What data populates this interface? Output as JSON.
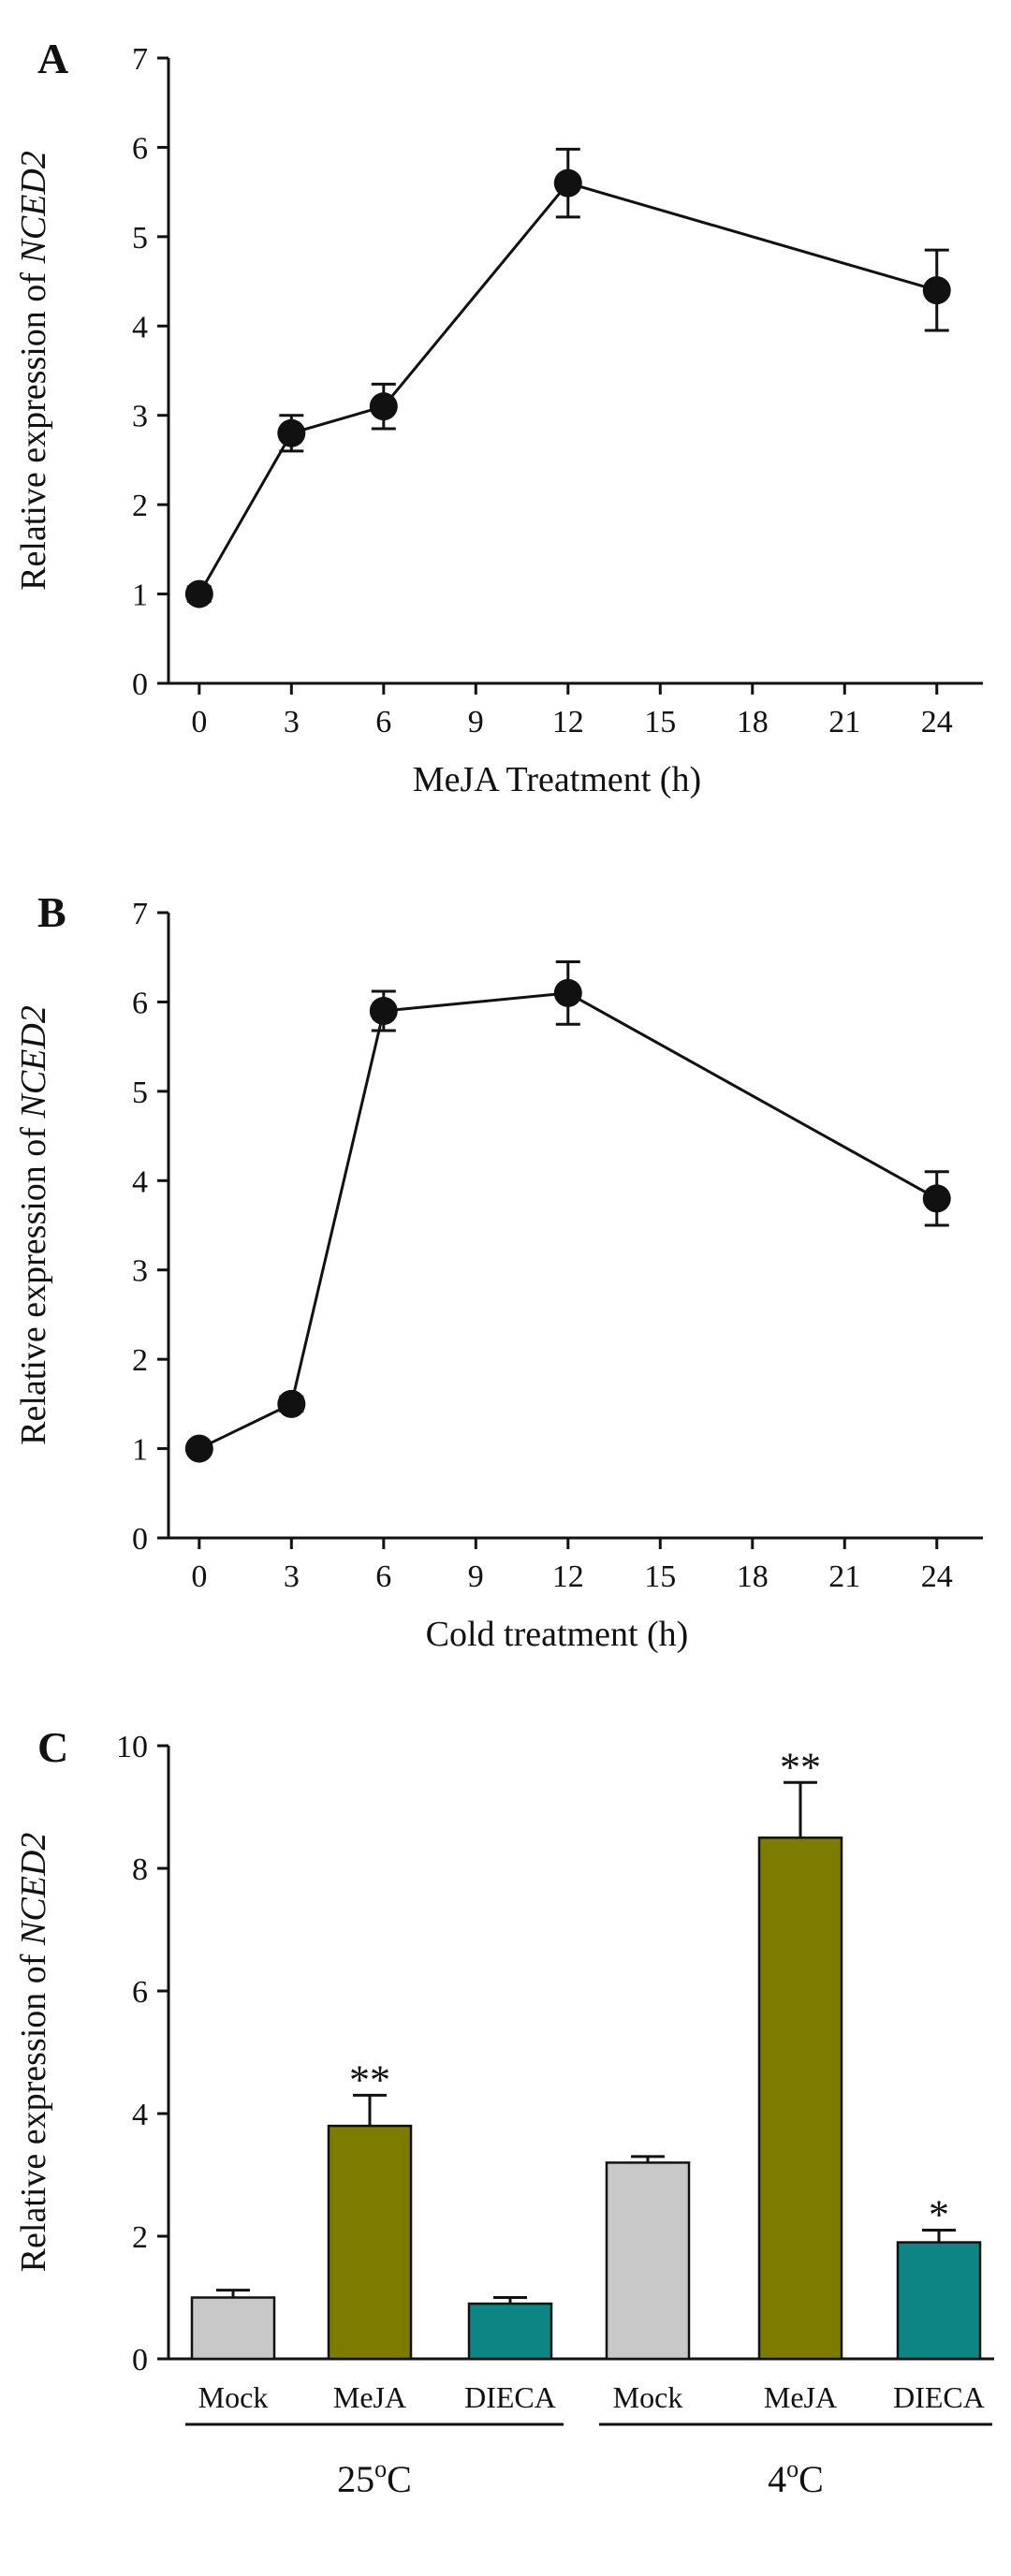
{
  "chart_data": [
    {
      "panel": "A",
      "type": "line",
      "title": "",
      "xlabel": "MeJA Treatment (h)",
      "ylabel_prefix": "Relative expression of ",
      "ylabel_gene": "NCED2",
      "x": [
        0,
        3,
        6,
        12,
        24
      ],
      "y": [
        1.0,
        2.8,
        3.1,
        5.6,
        4.4
      ],
      "error": [
        0.08,
        0.2,
        0.25,
        0.38,
        0.45
      ],
      "xlim": [
        -1,
        25.5
      ],
      "ylim": [
        0,
        7
      ],
      "xticks": [
        0,
        3,
        6,
        9,
        12,
        15,
        18,
        21,
        24
      ],
      "yticks": [
        0,
        1,
        2,
        3,
        4,
        5,
        6,
        7
      ]
    },
    {
      "panel": "B",
      "type": "line",
      "title": "",
      "xlabel": "Cold treatment (h)",
      "ylabel_prefix": "Relative expression of ",
      "ylabel_gene": "NCED2",
      "x": [
        0,
        3,
        6,
        12,
        24
      ],
      "y": [
        1.0,
        1.5,
        5.9,
        6.1,
        3.8
      ],
      "error": [
        0.05,
        0.08,
        0.22,
        0.35,
        0.3
      ],
      "xlim": [
        -1,
        25.5
      ],
      "ylim": [
        0,
        7
      ],
      "xticks": [
        0,
        3,
        6,
        9,
        12,
        15,
        18,
        21,
        24
      ],
      "yticks": [
        0,
        1,
        2,
        3,
        4,
        5,
        6,
        7
      ]
    },
    {
      "panel": "C",
      "type": "bar",
      "title": "",
      "ylabel_prefix": "Relative expression of ",
      "ylabel_gene": "NCED2",
      "ylim": [
        0,
        10
      ],
      "yticks": [
        0,
        2,
        4,
        6,
        8,
        10
      ],
      "categories": [
        "Mock",
        "MeJA",
        "DIECA",
        "Mock",
        "MeJA",
        "DIECA"
      ],
      "values": [
        1.0,
        3.8,
        0.9,
        3.2,
        8.5,
        1.9
      ],
      "error": [
        0.12,
        0.5,
        0.1,
        0.1,
        0.9,
        0.2
      ],
      "significance": [
        "",
        "**",
        "",
        "",
        "**",
        "*"
      ],
      "colors": [
        "#c8c8c8",
        "#7d7b00",
        "#0e8585",
        "#c8c8c8",
        "#7d7b00",
        "#0e8585"
      ],
      "groups": [
        {
          "label_base": "25",
          "label_sup": "o",
          "label_unit": "C"
        },
        {
          "label_base": "4",
          "label_sup": "o",
          "label_unit": "C"
        }
      ]
    }
  ]
}
